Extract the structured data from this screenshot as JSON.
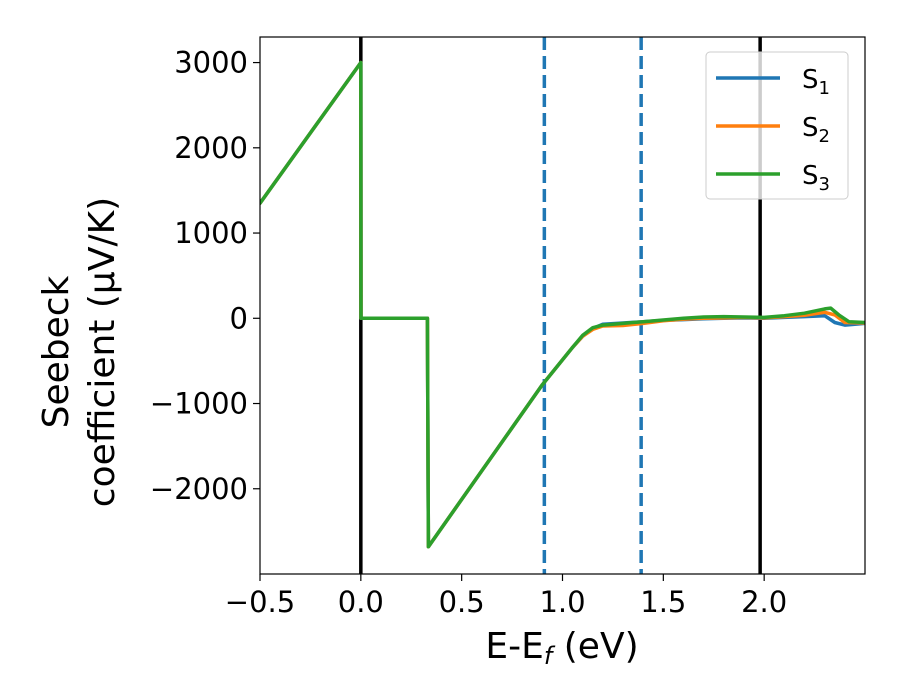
{
  "chart_data": {
    "type": "line",
    "xlabel_main": "E-E",
    "xlabel_sub": "f",
    "xlabel_unit": " (eV)",
    "ylabel_line1": "Seebeck",
    "ylabel_line2": "coefficient  (μV/K)",
    "xlim": [
      -0.5,
      2.5
    ],
    "ylim": [
      -3000,
      3300
    ],
    "xticks": [
      {
        "value": -0.5,
        "label": "−0.5"
      },
      {
        "value": 0.0,
        "label": "0.0"
      },
      {
        "value": 0.5,
        "label": "0.5"
      },
      {
        "value": 1.0,
        "label": "1.0"
      },
      {
        "value": 1.5,
        "label": "1.5"
      },
      {
        "value": 2.0,
        "label": "2.0"
      }
    ],
    "yticks": [
      {
        "value": 3000,
        "label": "3000"
      },
      {
        "value": 2000,
        "label": "2000"
      },
      {
        "value": 1000,
        "label": "1000"
      },
      {
        "value": 0,
        "label": "0"
      },
      {
        "value": -1000,
        "label": "−1000"
      },
      {
        "value": -2000,
        "label": "−2000"
      }
    ],
    "grid": false,
    "legend_position": "top-right",
    "vlines": [
      {
        "x": 0.0,
        "style": "solid",
        "color": "#000000"
      },
      {
        "x": 1.98,
        "style": "solid",
        "color": "#000000"
      },
      {
        "x": 0.91,
        "style": "dashed",
        "color": "#1f77b4"
      },
      {
        "x": 1.39,
        "style": "dashed",
        "color": "#1f77b4"
      }
    ],
    "series": [
      {
        "name": "S",
        "sub": "1",
        "color": "#1f77b4",
        "x": [
          -0.5,
          0.0,
          0.001,
          0.33,
          0.335,
          0.9,
          1.05,
          1.1,
          1.15,
          1.2,
          1.3,
          1.4,
          1.5,
          1.6,
          1.7,
          1.8,
          1.9,
          2.0,
          2.1,
          2.2,
          2.3,
          2.35,
          2.4,
          2.5
        ],
        "y": [
          1350,
          3000,
          0,
          0,
          -2680,
          -780,
          -340,
          -210,
          -120,
          -70,
          -55,
          -40,
          -25,
          -15,
          -5,
          0,
          5,
          0,
          10,
          20,
          30,
          -50,
          -80,
          -60
        ]
      },
      {
        "name": "S",
        "sub": "2",
        "color": "#ff7f0e",
        "x": [
          -0.5,
          0.0,
          0.001,
          0.33,
          0.335,
          0.9,
          1.05,
          1.1,
          1.15,
          1.2,
          1.3,
          1.4,
          1.5,
          1.6,
          1.7,
          1.8,
          1.9,
          2.0,
          2.1,
          2.2,
          2.3,
          2.35,
          2.4,
          2.5
        ],
        "y": [
          1350,
          3000,
          0,
          0,
          -2680,
          -780,
          -340,
          -210,
          -130,
          -90,
          -85,
          -60,
          -30,
          -10,
          0,
          5,
          10,
          5,
          20,
          35,
          70,
          40,
          -50,
          -55
        ]
      },
      {
        "name": "S",
        "sub": "3",
        "color": "#2ca02c",
        "x": [
          -0.5,
          0.0,
          0.001,
          0.33,
          0.335,
          0.9,
          1.05,
          1.1,
          1.15,
          1.2,
          1.3,
          1.4,
          1.5,
          1.6,
          1.7,
          1.8,
          1.9,
          2.0,
          2.1,
          2.2,
          2.3,
          2.33,
          2.37,
          2.42,
          2.5
        ],
        "y": [
          1350,
          3000,
          0,
          0,
          -2680,
          -780,
          -340,
          -200,
          -110,
          -80,
          -60,
          -40,
          -20,
          0,
          15,
          20,
          15,
          10,
          30,
          60,
          110,
          120,
          40,
          -40,
          -50
        ]
      }
    ]
  }
}
